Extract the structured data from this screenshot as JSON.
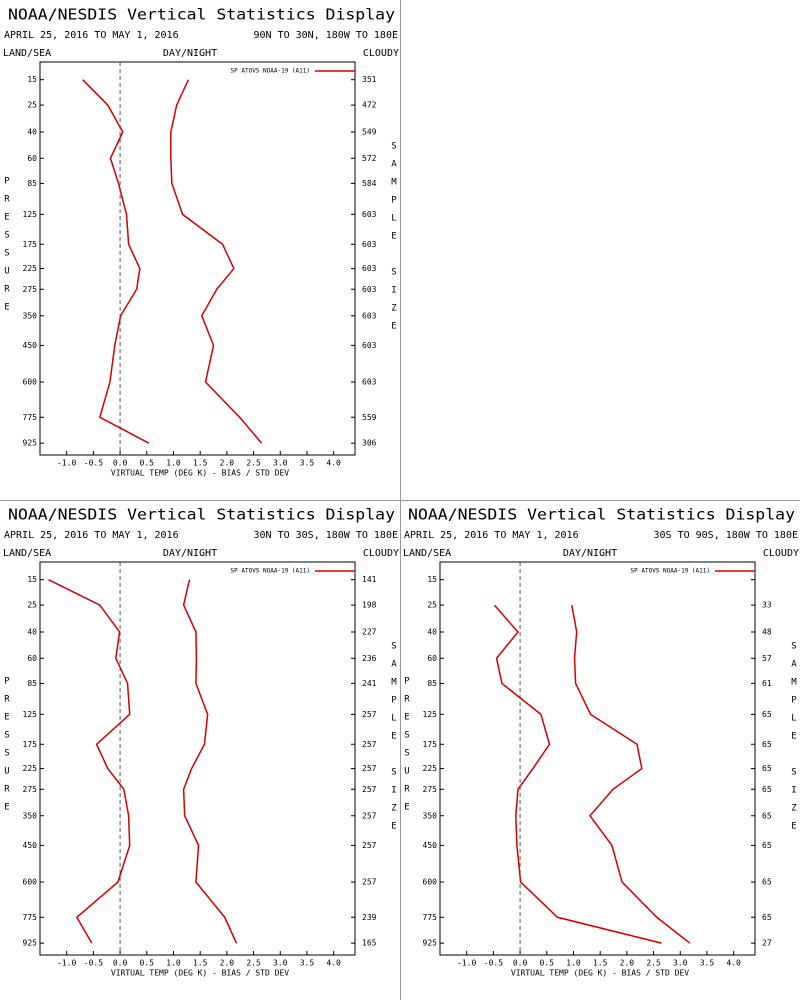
{
  "chart_data": [
    {
      "type": "line",
      "title": "NOAA/NESDIS Vertical Statistics Display",
      "subtitle": "APRIL 25, 2016 TO MAY 1, 2016",
      "region": "90N TO 30N, 180W TO 180E",
      "land_sea": "LAND/SEA",
      "day_night": "DAY/NIGHT",
      "cloudy": "CLOUDY",
      "ylabel": "PRESSURE",
      "y2label": "SAMPLE SIZE",
      "xlabel": "VIRTUAL TEMP (DEG K) - BIAS / STD DEV",
      "categories": [
        15,
        25,
        40,
        60,
        85,
        125,
        175,
        225,
        275,
        350,
        450,
        600,
        775,
        925
      ],
      "sample_size": [
        351,
        472,
        549,
        572,
        584,
        603,
        603,
        603,
        603,
        603,
        603,
        603,
        559,
        306
      ],
      "series": [
        {
          "name": "SP ATOVS NOAA-19 (A11)",
          "color": "#d40000",
          "values": [
            -0.7,
            -0.23,
            0.05,
            -0.18,
            -0.03,
            0.12,
            0.16,
            0.37,
            0.31,
            0.01,
            -0.1,
            -0.19,
            -0.38,
            0.54
          ]
        },
        {
          "color": "#d40000",
          "values": [
            1.28,
            1.06,
            0.95,
            0.95,
            0.97,
            1.17,
            1.92,
            2.13,
            1.81,
            1.53,
            1.75,
            1.6,
            2.24,
            2.65
          ]
        }
      ],
      "xlim": [
        -1.5,
        4.4
      ],
      "ylim": [
        10,
        1000
      ],
      "xticks": [
        {
          "value": -1,
          "label": "-1.0"
        },
        {
          "value": -0.5,
          "label": "-0.5"
        },
        {
          "value": 0,
          "label": "0.0"
        },
        {
          "value": 0.5,
          "label": "0.5"
        },
        {
          "value": 1,
          "label": "1.0"
        },
        {
          "value": 1.5,
          "label": "1.5"
        },
        {
          "value": 2,
          "label": "2.0"
        },
        {
          "value": 2.5,
          "label": "2.5"
        },
        {
          "value": 3,
          "label": "3.0"
        },
        {
          "value": 3.5,
          "label": "3.5"
        },
        {
          "value": 4,
          "label": "4.0"
        }
      ]
    },
    {
      "type": "line",
      "title": "NOAA/NESDIS Vertical Statistics Display",
      "subtitle": "APRIL 25, 2016 TO MAY 1, 2016",
      "region": "30N TO 30S, 180W TO 180E",
      "land_sea": "LAND/SEA",
      "day_night": "DAY/NIGHT",
      "cloudy": "CLOUDY",
      "ylabel": "PRESSURE",
      "y2label": "SAMPLE SIZE",
      "xlabel": "VIRTUAL TEMP (DEG K) - BIAS / STD DEV",
      "categories": [
        15,
        25,
        40,
        60,
        85,
        125,
        175,
        225,
        275,
        350,
        450,
        600,
        775,
        925
      ],
      "sample_size": [
        141,
        198,
        227,
        236,
        241,
        257,
        257,
        257,
        257,
        257,
        257,
        257,
        239,
        165
      ],
      "series": [
        {
          "name": "SP ATOVS NOAA-19 (A11)",
          "color": "#d40000",
          "values": [
            -1.34,
            -0.38,
            -0.01,
            -0.08,
            0.14,
            0.18,
            -0.44,
            -0.23,
            0.07,
            0.16,
            0.18,
            -0.04,
            -0.81,
            -0.53
          ]
        },
        {
          "color": "#d40000",
          "values": [
            1.3,
            1.19,
            1.42,
            1.43,
            1.42,
            1.64,
            1.58,
            1.34,
            1.19,
            1.21,
            1.47,
            1.42,
            1.96,
            2.18
          ]
        }
      ],
      "xlim": [
        -1.5,
        4.4
      ],
      "ylim": [
        10,
        1000
      ],
      "xticks": [
        {
          "value": -1,
          "label": "-1.0"
        },
        {
          "value": -0.5,
          "label": "-0.5"
        },
        {
          "value": 0,
          "label": "0.0"
        },
        {
          "value": 0.5,
          "label": "0.5"
        },
        {
          "value": 1,
          "label": "1.0"
        },
        {
          "value": 1.5,
          "label": "1.5"
        },
        {
          "value": 2,
          "label": "2.0"
        },
        {
          "value": 2.5,
          "label": "2.5"
        },
        {
          "value": 3,
          "label": "3.0"
        },
        {
          "value": 3.5,
          "label": "3.5"
        },
        {
          "value": 4,
          "label": "4.0"
        }
      ]
    },
    {
      "type": "line",
      "title": "NOAA/NESDIS Vertical Statistics Display",
      "subtitle": "APRIL 25, 2016 TO MAY 1, 2016",
      "region": "30S TO 90S, 180W TO 180E",
      "land_sea": "LAND/SEA",
      "day_night": "DAY/NIGHT",
      "cloudy": "CLOUDY",
      "ylabel": "PRESSURE",
      "y2label": "SAMPLE SIZE",
      "xlabel": "VIRTUAL TEMP (DEG K) - BIAS / STD DEV",
      "categories": [
        15,
        25,
        40,
        60,
        85,
        125,
        175,
        225,
        275,
        350,
        450,
        600,
        775,
        925
      ],
      "sample_size": [
        null,
        33,
        48,
        57,
        61,
        65,
        65,
        65,
        65,
        65,
        65,
        65,
        65,
        27
      ],
      "series": [
        {
          "name": "SP ATOVS NOAA-19 (A11)",
          "color": "#d40000",
          "values": [
            null,
            -0.48,
            -0.04,
            -0.44,
            -0.34,
            0.39,
            0.55,
            0.24,
            -0.04,
            -0.08,
            -0.06,
            0.01,
            0.7,
            2.65
          ]
        },
        {
          "color": "#d40000",
          "values": [
            null,
            0.97,
            1.06,
            1.02,
            1.04,
            1.32,
            2.19,
            2.28,
            1.74,
            1.31,
            1.72,
            1.91,
            2.56,
            3.18
          ]
        }
      ],
      "xlim": [
        -1.5,
        4.4
      ],
      "ylim": [
        10,
        1000
      ],
      "xticks": [
        {
          "value": -1,
          "label": "-1.0"
        },
        {
          "value": -0.5,
          "label": "-0.5"
        },
        {
          "value": 0,
          "label": "0.0"
        },
        {
          "value": 0.5,
          "label": "0.5"
        },
        {
          "value": 1,
          "label": "1.0"
        },
        {
          "value": 1.5,
          "label": "1.5"
        },
        {
          "value": 2,
          "label": "2.0"
        },
        {
          "value": 2.5,
          "label": "2.5"
        },
        {
          "value": 3,
          "label": "3.0"
        },
        {
          "value": 3.5,
          "label": "3.5"
        },
        {
          "value": 4,
          "label": "4.0"
        }
      ]
    }
  ]
}
